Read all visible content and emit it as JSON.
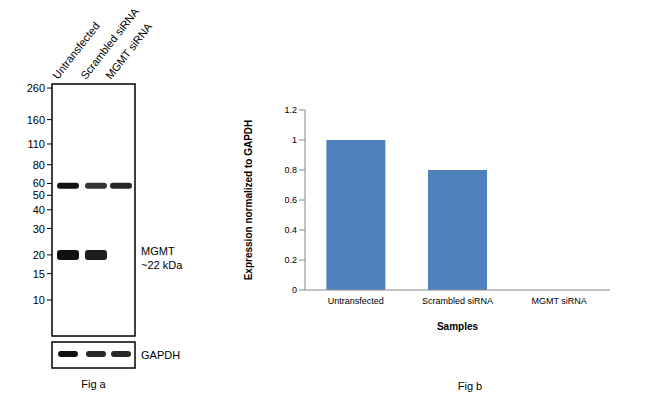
{
  "chart_data": {
    "type": "bar",
    "categories": [
      "Untransfected",
      "Scrambled siRNA",
      "MGMT siRNA"
    ],
    "values": [
      1,
      0.8,
      0
    ],
    "color": "#4f81bd",
    "ylim": [
      0,
      1.2
    ],
    "yticks": [
      0,
      0.2,
      0.4,
      0.6,
      0.8,
      1,
      1.2
    ],
    "x_label": "Samples",
    "y_label": "Expression normalized to GAPDH",
    "grid": false,
    "annotations": [
      "Fig b"
    ]
  },
  "blot": {
    "lanes": [
      "Untransfected",
      "Scrambled siRNA",
      "MGMT siRNA"
    ],
    "markers_kda": [
      260,
      160,
      110,
      80,
      60,
      50,
      40,
      30,
      20,
      15,
      10
    ],
    "bands": [
      {
        "kda": 58,
        "intensity": [
          1,
          0.85,
          0.9
        ]
      },
      {
        "kda": 20,
        "intensity": [
          1,
          0.95,
          0
        ],
        "label": [
          "MGMT",
          "~22 kDa"
        ]
      }
    ],
    "loading_control": {
      "label": "GAPDH",
      "intensity": [
        1,
        0.9,
        0.9
      ]
    },
    "caption": "Fig a"
  }
}
